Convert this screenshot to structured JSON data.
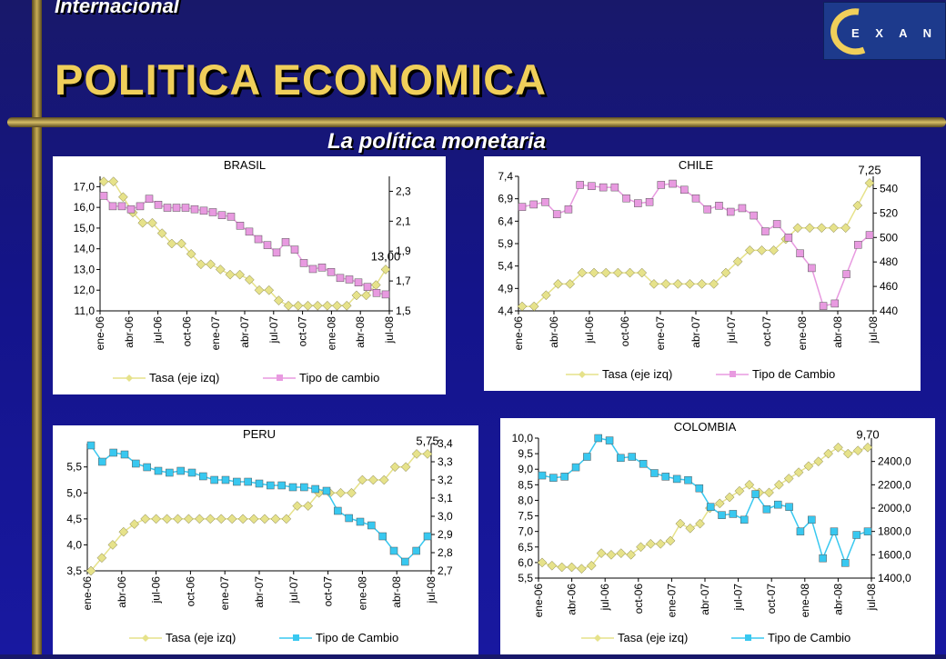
{
  "header": {
    "section": "Internacional",
    "title": "POLITICA ECONOMICA",
    "subtitle": "La política monetaria",
    "logo_text": "EXANTE"
  },
  "colors": {
    "tasa": "#e6e28a",
    "brasil_tc": "#e89ae0",
    "chile_tc": "#e89ae0",
    "peru_tc": "#38c8f0",
    "colombia_tc": "#38c8f0",
    "accent_gold": "#f0cf5a"
  },
  "chart_data": [
    {
      "type": "line",
      "title": "BRASIL",
      "x_labels": [
        "ene-06",
        "abr-06",
        "jul-06",
        "oct-06",
        "ene-07",
        "abr-07",
        "jul-07",
        "oct-07",
        "ene-08",
        "abr-08",
        "jul-08"
      ],
      "ylim_left": [
        11.0,
        17.5
      ],
      "yticks_left": [
        "11,0",
        "12,0",
        "13,0",
        "14,0",
        "15,0",
        "16,0",
        "17,0"
      ],
      "ylim_right": [
        1.5,
        2.4
      ],
      "yticks_right": [
        "1,5",
        "1,7",
        "1,9",
        "2,1",
        "2,3"
      ],
      "annotation": "13,00",
      "series": [
        {
          "name": "Tasa (eje izq)",
          "axis": "left",
          "values": [
            17.25,
            17.25,
            16.5,
            15.75,
            15.25,
            15.25,
            14.75,
            14.25,
            14.25,
            13.75,
            13.25,
            13.25,
            13.0,
            12.75,
            12.75,
            12.5,
            12.0,
            12.0,
            11.5,
            11.25,
            11.25,
            11.25,
            11.25,
            11.25,
            11.25,
            11.25,
            11.75,
            11.75,
            12.25,
            13.0
          ]
        },
        {
          "name": "Tipo de cambio",
          "axis": "right",
          "values": [
            2.27,
            2.2,
            2.2,
            2.18,
            2.2,
            2.25,
            2.21,
            2.19,
            2.19,
            2.19,
            2.18,
            2.17,
            2.16,
            2.14,
            2.13,
            2.07,
            2.03,
            1.98,
            1.94,
            1.89,
            1.96,
            1.91,
            1.82,
            1.78,
            1.79,
            1.76,
            1.72,
            1.71,
            1.69,
            1.66,
            1.62,
            1.61
          ]
        }
      ]
    },
    {
      "type": "line",
      "title": "CHILE",
      "x_labels": [
        "ene-06",
        "abr-06",
        "jul-06",
        "oct-06",
        "ene-07",
        "abr-07",
        "jul-07",
        "oct-07",
        "ene-08",
        "abr-08",
        "jul-08"
      ],
      "ylim_left": [
        4.4,
        7.4
      ],
      "yticks_left": [
        "4,4",
        "4,9",
        "5,4",
        "5,9",
        "6,4",
        "6,9",
        "7,4"
      ],
      "ylim_right": [
        440,
        550
      ],
      "yticks_right": [
        "440",
        "460",
        "480",
        "500",
        "520",
        "540"
      ],
      "annotation": "7,25",
      "series": [
        {
          "name": "Tasa (eje izq)",
          "axis": "left",
          "values": [
            4.5,
            4.5,
            4.75,
            5.0,
            5.0,
            5.25,
            5.25,
            5.25,
            5.25,
            5.25,
            5.25,
            5.0,
            5.0,
            5.0,
            5.0,
            5.0,
            5.0,
            5.25,
            5.5,
            5.75,
            5.75,
            5.75,
            6.0,
            6.25,
            6.25,
            6.25,
            6.25,
            6.25,
            6.75,
            7.25
          ]
        },
        {
          "name": "Tipo de Cambio",
          "axis": "right",
          "values": [
            525,
            527,
            529,
            519,
            523,
            543,
            542,
            541,
            541,
            532,
            528,
            529,
            543,
            544,
            539,
            532,
            523,
            526,
            521,
            524,
            518,
            505,
            511,
            500,
            487,
            475,
            444,
            446,
            470,
            494,
            502
          ]
        }
      ]
    },
    {
      "type": "line",
      "title": "PERU",
      "x_labels": [
        "ene-06",
        "abr-06",
        "jul-06",
        "oct-06",
        "ene-07",
        "abr-07",
        "jul-07",
        "oct-07",
        "ene-08",
        "abr-08",
        "jul-08"
      ],
      "ylim_left": [
        3.5,
        5.95
      ],
      "yticks_left": [
        "3,5",
        "4,0",
        "4,5",
        "5,0",
        "5,5"
      ],
      "ylim_right": [
        2.7,
        3.4
      ],
      "yticks_right": [
        "2,7",
        "2,8",
        "2,9",
        "3,0",
        "3,1",
        "3,2",
        "3,3",
        "3,4"
      ],
      "annotation": "5,75",
      "series": [
        {
          "name": "Tasa (eje izq)",
          "axis": "left",
          "values": [
            3.5,
            3.75,
            4.0,
            4.25,
            4.4,
            4.5,
            4.5,
            4.5,
            4.5,
            4.5,
            4.5,
            4.5,
            4.5,
            4.5,
            4.5,
            4.5,
            4.5,
            4.5,
            4.5,
            4.75,
            4.75,
            5.0,
            5.0,
            5.0,
            5.0,
            5.25,
            5.25,
            5.25,
            5.5,
            5.5,
            5.75,
            5.75
          ]
        },
        {
          "name": "Tipo de Cambio",
          "axis": "right",
          "values": [
            3.39,
            3.3,
            3.35,
            3.34,
            3.29,
            3.27,
            3.25,
            3.24,
            3.25,
            3.24,
            3.22,
            3.2,
            3.2,
            3.19,
            3.19,
            3.18,
            3.17,
            3.17,
            3.16,
            3.16,
            3.15,
            3.14,
            3.03,
            2.99,
            2.97,
            2.95,
            2.89,
            2.81,
            2.75,
            2.81,
            2.89
          ]
        }
      ]
    },
    {
      "type": "line",
      "title": "COLOMBIA",
      "x_labels": [
        "ene-06",
        "abr-06",
        "jul-06",
        "oct-06",
        "ene-07",
        "abr-07",
        "jul-07",
        "oct-07",
        "ene-08",
        "abr-08",
        "jul-08"
      ],
      "ylim_left": [
        5.5,
        10.0
      ],
      "yticks_left": [
        "5,5",
        "6,0",
        "6,5",
        "7,0",
        "7,5",
        "8,0",
        "8,5",
        "9,0",
        "9,5",
        "10,0"
      ],
      "ylim_right": [
        1400,
        2600
      ],
      "yticks_right": [
        "1400,0",
        "1600,0",
        "1800,0",
        "2000,0",
        "2200,0",
        "2400,0"
      ],
      "annotation": "9,70",
      "series": [
        {
          "name": "Tasa (eje izq)",
          "axis": "left",
          "values": [
            6.0,
            5.9,
            5.85,
            5.85,
            5.8,
            5.9,
            6.3,
            6.25,
            6.3,
            6.25,
            6.5,
            6.6,
            6.6,
            6.7,
            7.25,
            7.1,
            7.25,
            7.75,
            7.9,
            8.1,
            8.3,
            8.5,
            8.25,
            8.25,
            8.5,
            8.7,
            8.9,
            9.1,
            9.25,
            9.5,
            9.7,
            9.5,
            9.6,
            9.7
          ]
        },
        {
          "name": "Tipo de Cambio",
          "axis": "right",
          "values": [
            2280,
            2260,
            2270,
            2350,
            2440,
            2600,
            2580,
            2430,
            2440,
            2380,
            2300,
            2270,
            2250,
            2240,
            2170,
            2010,
            1940,
            1950,
            1900,
            2120,
            1990,
            2030,
            2010,
            1800,
            1900,
            1570,
            1800,
            1530,
            1770,
            1800
          ]
        }
      ]
    }
  ]
}
